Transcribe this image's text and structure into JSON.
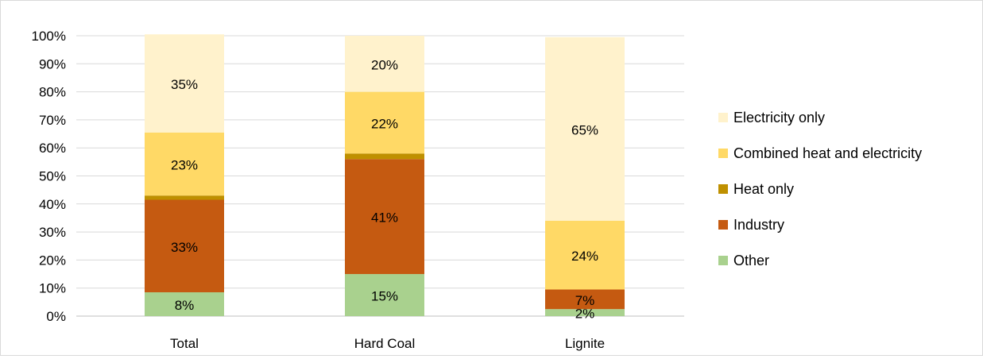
{
  "chart_data": {
    "type": "bar",
    "stacked": true,
    "normalized_percent": true,
    "categories": [
      "Total",
      "Hard Coal",
      "Lignite"
    ],
    "series": [
      {
        "name": "Other",
        "color": "#a9d18e",
        "values": [
          8.5,
          15,
          2.5
        ],
        "labels": [
          "8%",
          "15%",
          "2%"
        ]
      },
      {
        "name": "Industry",
        "color": "#c55a11",
        "values": [
          33,
          41,
          7
        ],
        "labels": [
          "33%",
          "41%",
          "7%"
        ]
      },
      {
        "name": "Heat only",
        "color": "#bf9000",
        "values": [
          1.5,
          2,
          0
        ],
        "labels": [
          "",
          "",
          ""
        ]
      },
      {
        "name": "Combined heat and electricity",
        "color": "#ffd966",
        "values": [
          22.5,
          22,
          24.5
        ],
        "labels": [
          "23%",
          "22%",
          "24%"
        ]
      },
      {
        "name": "Electricity only",
        "color": "#fff2cc",
        "values": [
          35,
          20,
          65.5
        ],
        "labels": [
          "35%",
          "20%",
          "65%"
        ]
      }
    ],
    "legend_order": [
      "Electricity only",
      "Combined heat and electricity",
      "Heat only",
      "Industry",
      "Other"
    ],
    "y_ticks": [
      "0%",
      "10%",
      "20%",
      "30%",
      "40%",
      "50%",
      "60%",
      "70%",
      "80%",
      "90%",
      "100%"
    ],
    "ylim": [
      0,
      100
    ],
    "grid": true,
    "legend_position": "right",
    "title": "",
    "xlabel": "",
    "ylabel": ""
  }
}
